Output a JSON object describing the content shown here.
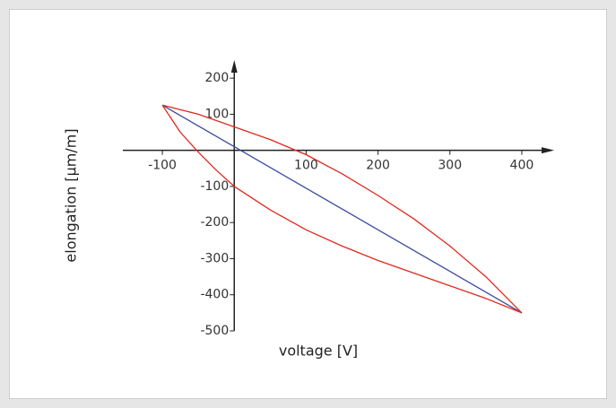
{
  "chart_data": {
    "type": "line",
    "xlabel": "voltage [V]",
    "ylabel": "elongation [µm/m]",
    "xlim": [
      -155,
      445
    ],
    "ylim": [
      -500,
      250
    ],
    "xticks": [
      -100,
      100,
      200,
      300,
      400
    ],
    "yticks": [
      200,
      100,
      -100,
      -200,
      -300,
      -400,
      -500
    ],
    "grid": false,
    "series": [
      {
        "color": "#3a4aa0",
        "x": [
          -100,
          400
        ],
        "values": [
          125,
          -450
        ]
      },
      {
        "color": "#e0281e",
        "x": [
          -100,
          -50,
          0,
          50,
          100,
          150,
          200,
          250,
          300,
          350,
          400
        ],
        "values": [
          125,
          100,
          65,
          30,
          -12,
          -65,
          -125,
          -190,
          -265,
          -350,
          -450
        ]
      },
      {
        "color": "#e0281e",
        "x": [
          -100,
          -75,
          -50,
          -25,
          0,
          50,
          100,
          150,
          200,
          250,
          300,
          350,
          400
        ],
        "values": [
          125,
          50,
          -5,
          -55,
          -100,
          -165,
          -220,
          -265,
          -305,
          -340,
          -375,
          -410,
          -450
        ]
      }
    ]
  }
}
